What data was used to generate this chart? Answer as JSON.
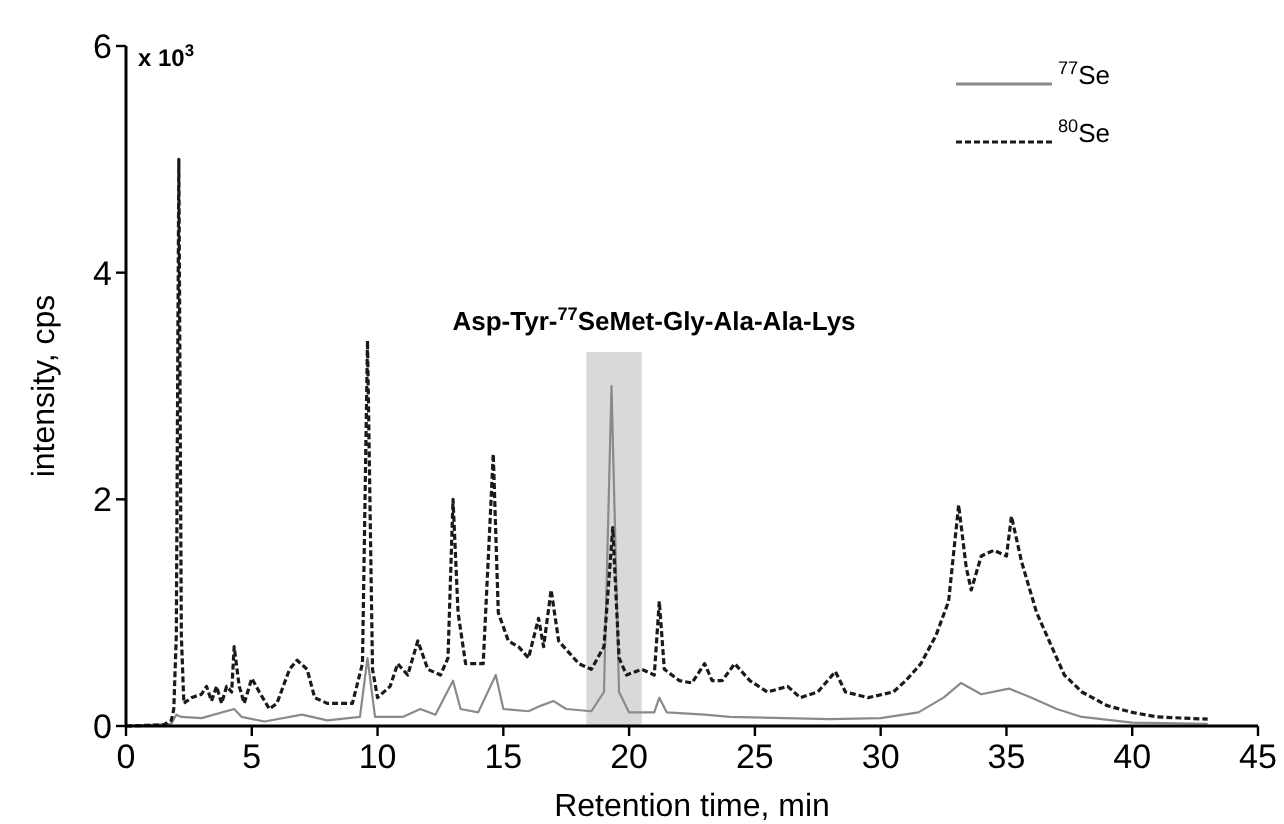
{
  "chart_data": {
    "type": "line",
    "xlabel": "Retention time, min",
    "ylabel": "intensity, cps",
    "annotations": [
      "x 10$^{3}$"
    ],
    "xlim": [
      0,
      45
    ],
    "xticks": [
      0,
      5,
      10,
      15,
      20,
      25,
      30,
      35,
      40,
      45
    ],
    "ylim": [
      0,
      6
    ],
    "yticks": [
      0,
      2,
      4,
      6
    ],
    "grid": false,
    "legend": "top right",
    "bands": [
      {
        "axis": "x",
        "from": 18.3,
        "to": 20.5,
        "label": "Asp-Tyr-$^{77}$SeMet-Gly-Ala-Ala-Lys",
        "color": "#d9d9d9"
      }
    ],
    "series": [
      {
        "name": "$^{77}$Se",
        "color": "#8a8a8a",
        "line_style": "solid",
        "x": [
          0,
          1.8,
          2.0,
          2.2,
          3,
          4.3,
          4.6,
          5.5,
          7,
          8,
          9.3,
          9.6,
          9.9,
          11,
          11.7,
          12.3,
          13.0,
          13.3,
          14.0,
          14.7,
          15.0,
          16,
          16.5,
          17,
          17.5,
          18.5,
          19.0,
          19.3,
          19.6,
          20,
          21,
          21.2,
          21.5,
          23,
          24,
          28,
          30,
          31.5,
          32.5,
          33.2,
          34,
          35.1,
          36,
          37,
          38,
          40,
          43
        ],
        "values": [
          0,
          0.02,
          0.1,
          0.08,
          0.07,
          0.15,
          0.08,
          0.04,
          0.1,
          0.05,
          0.08,
          0.6,
          0.08,
          0.08,
          0.15,
          0.1,
          0.4,
          0.15,
          0.12,
          0.45,
          0.15,
          0.13,
          0.18,
          0.22,
          0.15,
          0.13,
          0.3,
          3.0,
          0.3,
          0.12,
          0.12,
          0.25,
          0.12,
          0.1,
          0.08,
          0.06,
          0.07,
          0.12,
          0.25,
          0.38,
          0.28,
          0.33,
          0.25,
          0.15,
          0.08,
          0.03,
          0.02
        ]
      },
      {
        "name": "$^{80}$Se",
        "color": "#1a1a1a",
        "line_style": "dashed",
        "x": [
          0,
          1.5,
          1.8,
          1.9,
          2.0,
          2.1,
          2.2,
          2.3,
          2.6,
          3.0,
          3.2,
          3.4,
          3.6,
          3.8,
          4.0,
          4.2,
          4.3,
          4.5,
          4.7,
          5.0,
          5.3,
          5.7,
          6.0,
          6.5,
          6.8,
          7.2,
          7.5,
          8.0,
          9.0,
          9.4,
          9.6,
          9.8,
          10.0,
          10.5,
          10.8,
          11.2,
          11.6,
          12.0,
          12.5,
          12.8,
          13.0,
          13.2,
          13.5,
          14.2,
          14.6,
          14.8,
          15.2,
          15.6,
          16.0,
          16.4,
          16.6,
          16.9,
          17.2,
          17.6,
          18.0,
          18.5,
          19.0,
          19.35,
          19.6,
          19.9,
          20.5,
          21.0,
          21.2,
          21.4,
          22.0,
          22.5,
          23.0,
          23.3,
          23.7,
          24.2,
          24.8,
          25.5,
          26.3,
          26.8,
          27.5,
          28.2,
          28.6,
          29.5,
          30.5,
          31.0,
          31.6,
          32.2,
          32.7,
          33.1,
          33.4,
          33.6,
          34.0,
          34.5,
          35.0,
          35.2,
          35.6,
          36.2,
          36.8,
          37.3,
          38.0,
          39.0,
          40.0,
          41.0,
          43.0
        ],
        "values": [
          0,
          0.01,
          0.05,
          0.15,
          0.8,
          5.0,
          0.8,
          0.2,
          0.25,
          0.28,
          0.35,
          0.22,
          0.35,
          0.2,
          0.35,
          0.3,
          0.7,
          0.35,
          0.2,
          0.42,
          0.3,
          0.15,
          0.2,
          0.5,
          0.58,
          0.5,
          0.25,
          0.2,
          0.2,
          0.55,
          3.4,
          0.5,
          0.25,
          0.35,
          0.55,
          0.45,
          0.75,
          0.5,
          0.45,
          0.6,
          2.0,
          1.0,
          0.55,
          0.55,
          2.4,
          1.0,
          0.75,
          0.7,
          0.6,
          0.95,
          0.7,
          1.2,
          0.75,
          0.65,
          0.55,
          0.5,
          0.7,
          1.75,
          0.6,
          0.45,
          0.5,
          0.45,
          1.1,
          0.5,
          0.4,
          0.38,
          0.55,
          0.4,
          0.4,
          0.55,
          0.4,
          0.3,
          0.35,
          0.25,
          0.3,
          0.48,
          0.3,
          0.25,
          0.3,
          0.4,
          0.55,
          0.8,
          1.1,
          1.95,
          1.4,
          1.2,
          1.5,
          1.55,
          1.5,
          1.85,
          1.45,
          1.0,
          0.7,
          0.45,
          0.3,
          0.18,
          0.12,
          0.08,
          0.06
        ]
      }
    ]
  }
}
